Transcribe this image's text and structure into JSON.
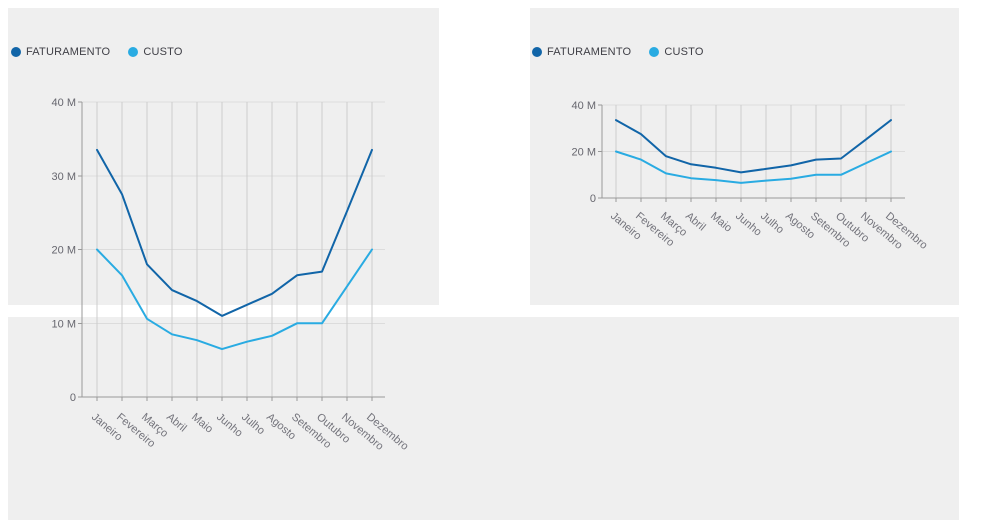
{
  "page": {
    "background_color": "#ffffff",
    "panel_color": "#efefef"
  },
  "chart_data": [
    {
      "type": "line",
      "title": "",
      "xlabel": "",
      "ylabel": "",
      "ylim": [
        0,
        40
      ],
      "grid": true,
      "legend_position": "top-left",
      "categories": [
        "Janeiro",
        "Fevereiro",
        "Março",
        "Abril",
        "Maio",
        "Junho",
        "Julho",
        "Agosto",
        "Setembro",
        "Outubro",
        "Novembro",
        "Dezembro"
      ],
      "yticks": [
        {
          "value": 40,
          "label": "40 M"
        },
        {
          "value": 30,
          "label": "30 M"
        },
        {
          "value": 20,
          "label": "20 M"
        },
        {
          "value": 10,
          "label": "10 M"
        },
        {
          "value": 0,
          "label": "0"
        }
      ],
      "series": [
        {
          "name": "FATURAMENTO",
          "color": "#1165a8",
          "values": [
            33.5,
            27.5,
            18,
            14.5,
            13,
            11,
            12.5,
            14,
            16.5,
            17,
            25.2,
            33.5
          ]
        },
        {
          "name": "CUSTO",
          "color": "#29abe2",
          "values": [
            20,
            16.5,
            10.6,
            8.5,
            7.7,
            6.5,
            7.5,
            8.3,
            10,
            10,
            15,
            20
          ]
        }
      ]
    },
    {
      "type": "line",
      "title": "",
      "xlabel": "",
      "ylabel": "",
      "ylim": [
        0,
        40
      ],
      "grid": true,
      "legend_position": "top-left",
      "categories": [
        "Janeiro",
        "Fevereiro",
        "Março",
        "Abril",
        "Maio",
        "Junho",
        "Julho",
        "Agosto",
        "Setembro",
        "Outubro",
        "Novembro",
        "Dezembro"
      ],
      "yticks": [
        {
          "value": 40,
          "label": "40 M"
        },
        {
          "value": 20,
          "label": "20 M"
        },
        {
          "value": 0,
          "label": "0"
        }
      ],
      "series": [
        {
          "name": "FATURAMENTO",
          "color": "#1165a8",
          "values": [
            33.5,
            27.5,
            18,
            14.5,
            13,
            11,
            12.5,
            14,
            16.5,
            17,
            25.2,
            33.5
          ]
        },
        {
          "name": "CUSTO",
          "color": "#29abe2",
          "values": [
            20,
            16.5,
            10.6,
            8.5,
            7.7,
            6.5,
            7.5,
            8.3,
            10,
            10,
            15,
            20
          ]
        }
      ]
    }
  ],
  "style": {
    "vertical_grid_color": "#cdcdcd",
    "horizontal_grid_color": "#dcdcdc",
    "axis_color": "#999999",
    "ytick_label_color": "#66666e",
    "xtick_label_color": "#73737b"
  }
}
